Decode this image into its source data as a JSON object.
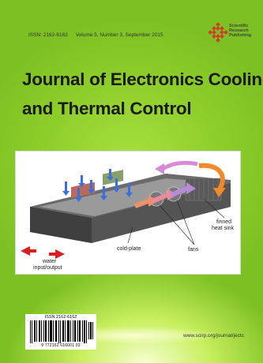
{
  "header": {
    "issn": "ISSN: 2162-6162",
    "volume_info": "Volume 5, Number 3, September 2015"
  },
  "publisher": {
    "line1": "Scientific",
    "line2": "Research",
    "line3": "Publishing"
  },
  "journal_title": {
    "line1": "Journal of Electronics Cooling",
    "line2": "and Thermal Control"
  },
  "figure": {
    "labels": {
      "finned_heat_sink_1": "finned",
      "finned_heat_sink_2": "heat sink",
      "fans": "fans",
      "cold_plate": "cold-plate",
      "water_1": "water",
      "water_2": "input/output"
    }
  },
  "barcode": {
    "issn": "ISSN 2162-6162",
    "digits": "9 772162 616001   03"
  },
  "footer": {
    "url": "www.scirp.org/journal/jectc"
  },
  "colors": {
    "background": "#86c826",
    "publisher_logo": "#d23a2a"
  }
}
